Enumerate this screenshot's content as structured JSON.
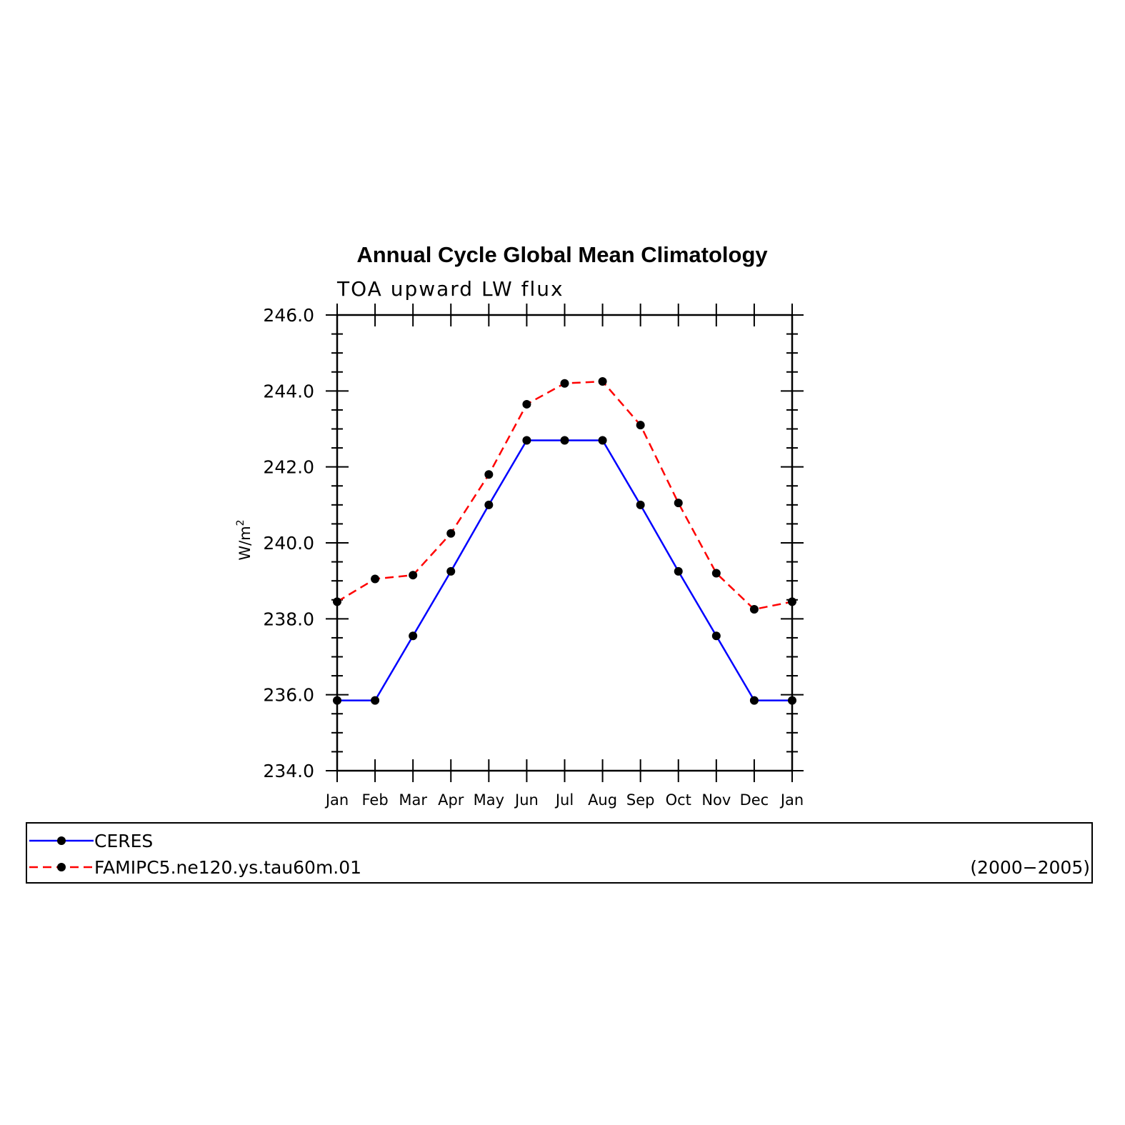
{
  "chart_data": {
    "type": "line",
    "title": "Annual Cycle Global Mean Climatology",
    "subtitle": "TOA upward LW flux",
    "ylabel": "W/m",
    "ylabel_sup": "2",
    "ylim": [
      234.0,
      246.0
    ],
    "yticks": [
      "234.0",
      "236.0",
      "238.0",
      "240.0",
      "242.0",
      "244.0",
      "246.0"
    ],
    "categories": [
      "Jan",
      "Feb",
      "Mar",
      "Apr",
      "May",
      "Jun",
      "Jul",
      "Aug",
      "Sep",
      "Oct",
      "Nov",
      "Dec",
      "Jan"
    ],
    "series": [
      {
        "name": "CERES",
        "color": "#0000ff",
        "style": "solid",
        "values": [
          235.85,
          235.85,
          237.55,
          239.25,
          241.0,
          242.7,
          242.7,
          242.7,
          241.0,
          239.25,
          237.55,
          235.85,
          235.85
        ]
      },
      {
        "name": "FAMIPC5.ne120.ys.tau60m.01",
        "color": "#ff0000",
        "style": "dashed",
        "values": [
          238.45,
          239.05,
          239.15,
          240.25,
          241.8,
          243.65,
          244.2,
          244.25,
          243.1,
          241.05,
          239.2,
          238.25,
          238.45
        ]
      }
    ],
    "marker_color": "#000000",
    "legend": {
      "placement": "bottom",
      "period": "(2000−2005)"
    },
    "grid": false
  }
}
